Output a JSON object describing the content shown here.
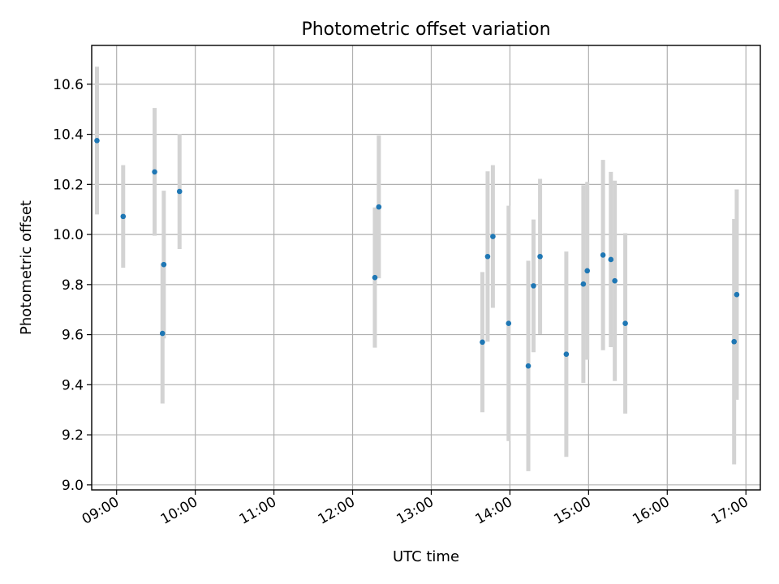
{
  "chart_data": {
    "type": "scatter",
    "title": "Photometric offset variation",
    "xlabel": "UTC time",
    "ylabel": "Photometric offset",
    "xlim": [
      "08:41",
      "17:11"
    ],
    "ylim": [
      8.98,
      10.755
    ],
    "x_ticks": [
      "09:00",
      "10:00",
      "11:00",
      "12:00",
      "13:00",
      "14:00",
      "15:00",
      "16:00",
      "17:00"
    ],
    "y_ticks": [
      "9.0",
      "9.2",
      "9.4",
      "9.6",
      "9.8",
      "10.0",
      "10.2",
      "10.4",
      "10.6"
    ],
    "grid": true,
    "point_color": "#1f77b4",
    "errorbar_color": "#d3d3d3",
    "points": [
      {
        "x": "08:45",
        "y": 10.375,
        "err": 0.295
      },
      {
        "x": "09:05",
        "y": 10.072,
        "err": 0.205
      },
      {
        "x": "09:29",
        "y": 10.25,
        "err": 0.255
      },
      {
        "x": "09:35",
        "y": 9.605,
        "err": 0.28
      },
      {
        "x": "09:36",
        "y": 9.88,
        "err": 0.295
      },
      {
        "x": "09:48",
        "y": 10.172,
        "err": 0.23
      },
      {
        "x": "12:17",
        "y": 9.828,
        "err": 0.28
      },
      {
        "x": "12:20",
        "y": 10.11,
        "err": 0.285
      },
      {
        "x": "13:39",
        "y": 9.57,
        "err": 0.28
      },
      {
        "x": "13:43",
        "y": 9.912,
        "err": 0.34
      },
      {
        "x": "13:47",
        "y": 9.992,
        "err": 0.285
      },
      {
        "x": "13:59",
        "y": 9.645,
        "err": 0.47
      },
      {
        "x": "14:14",
        "y": 9.475,
        "err": 0.42
      },
      {
        "x": "14:18",
        "y": 9.795,
        "err": 0.265
      },
      {
        "x": "14:23",
        "y": 9.912,
        "err": 0.31
      },
      {
        "x": "14:43",
        "y": 9.522,
        "err": 0.41
      },
      {
        "x": "14:56",
        "y": 9.802,
        "err": 0.395
      },
      {
        "x": "14:59",
        "y": 9.855,
        "err": 0.355
      },
      {
        "x": "15:11",
        "y": 9.918,
        "err": 0.38
      },
      {
        "x": "15:17",
        "y": 9.9,
        "err": 0.35
      },
      {
        "x": "15:20",
        "y": 9.815,
        "err": 0.4
      },
      {
        "x": "15:28",
        "y": 9.645,
        "err": 0.36
      },
      {
        "x": "16:51",
        "y": 9.572,
        "err": 0.49
      },
      {
        "x": "16:53",
        "y": 9.76,
        "err": 0.42
      }
    ]
  }
}
